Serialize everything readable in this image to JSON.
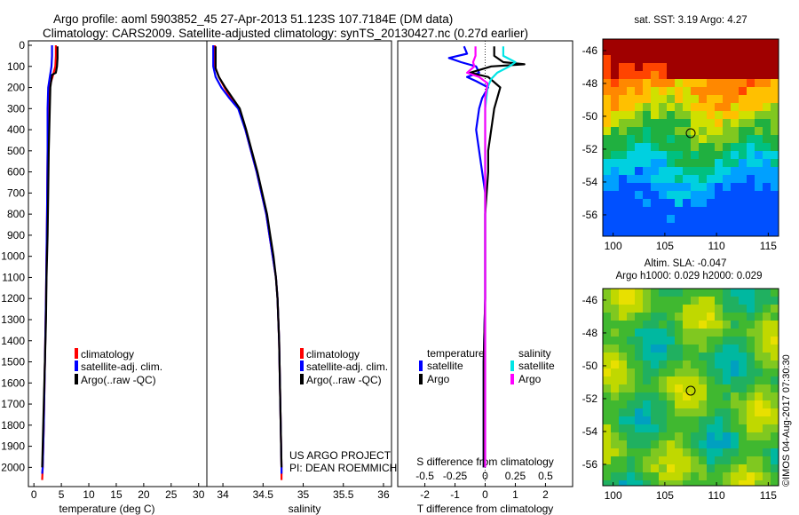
{
  "header": {
    "line1": "Argo profile: aoml 5903852_45 27-Apr-2013 51.123S 107.7184E (DM data)",
    "line2": "Climatology: CARS2009. Satellite-adjusted climatology: synTS_20130427.nc (0.27d earlier)"
  },
  "colors": {
    "climatology": "#ff0000",
    "satellite": "#0000ff",
    "argo": "#000000",
    "sal_satellite": "#00e5e5",
    "sal_argo": "#ff00ff"
  },
  "depth_axis": {
    "ticks": [
      0,
      100,
      200,
      300,
      400,
      500,
      600,
      700,
      800,
      900,
      1000,
      1100,
      1200,
      1300,
      1400,
      1500,
      1600,
      1700,
      1800,
      1900,
      2000
    ]
  },
  "legend": {
    "climatology": "climatology",
    "satellite_adj": "satellite-adj. clim.",
    "argo": "Argo(..raw -QC)"
  },
  "panel4": {
    "temp_header": "temperature",
    "sal_header": "salinity",
    "satellite": "satellite",
    "argo": "Argo"
  },
  "credit": {
    "line1": "US ARGO PROJECT",
    "line2": "PI: DEAN ROEMMICH"
  },
  "maps": {
    "sst_title": "sat. SST: 3.19 Argo: 4.27",
    "sla_title1": "Altim. SLA: -0.047",
    "sla_title2": "Argo h1000: 0.029 h2000: 0.029",
    "lat_ticks": [
      "-46",
      "-48",
      "-50",
      "-52",
      "-54",
      "-56"
    ],
    "lon_ticks": [
      "100",
      "105",
      "110",
      "115"
    ],
    "watermark": "©IMOS 04-Aug-2017 07:30:30"
  },
  "chart_data": [
    {
      "type": "line",
      "title": "",
      "xlabel": "temperature (deg C)",
      "ylabel": "",
      "xlim": [
        -1,
        31.5
      ],
      "ylim": [
        2070,
        0
      ],
      "xticks": [
        0,
        5,
        10,
        15,
        20,
        25,
        30
      ],
      "series": [
        {
          "name": "climatology",
          "color": "#ff0000",
          "points": [
            [
              4.0,
              0
            ],
            [
              4.0,
              50
            ],
            [
              3.9,
              100
            ],
            [
              3.4,
              150
            ],
            [
              2.8,
              200
            ],
            [
              2.6,
              300
            ],
            [
              2.5,
              500
            ],
            [
              2.4,
              800
            ],
            [
              2.3,
              1000
            ],
            [
              2.2,
              1200
            ],
            [
              2.0,
              1500
            ],
            [
              1.8,
              1800
            ],
            [
              1.6,
              2000
            ],
            [
              1.5,
              2060
            ]
          ]
        },
        {
          "name": "satellite-adj. clim.",
          "color": "#0000ff",
          "points": [
            [
              3.3,
              0
            ],
            [
              3.3,
              50
            ],
            [
              3.2,
              100
            ],
            [
              2.9,
              150
            ],
            [
              2.6,
              200
            ],
            [
              2.5,
              300
            ],
            [
              2.5,
              500
            ],
            [
              2.4,
              800
            ],
            [
              2.3,
              1000
            ],
            [
              2.2,
              1200
            ],
            [
              2.0,
              1500
            ],
            [
              1.8,
              1800
            ],
            [
              1.6,
              2000
            ],
            [
              1.5,
              2030
            ]
          ]
        },
        {
          "name": "Argo(..raw -QC)",
          "color": "#000000",
          "points": [
            [
              4.3,
              5
            ],
            [
              4.3,
              60
            ],
            [
              4.2,
              100
            ],
            [
              4.0,
              130
            ],
            [
              3.3,
              140
            ],
            [
              3.0,
              200
            ],
            [
              2.9,
              300
            ],
            [
              2.8,
              400
            ],
            [
              2.7,
              500
            ],
            [
              2.6,
              700
            ],
            [
              2.5,
              900
            ],
            [
              2.3,
              1100
            ],
            [
              2.2,
              1300
            ],
            [
              2.0,
              1500
            ],
            [
              1.8,
              1700
            ],
            [
              1.6,
              1900
            ],
            [
              1.5,
              2000
            ]
          ]
        }
      ]
    },
    {
      "type": "line",
      "title": "",
      "xlabel": "salinity",
      "ylabel": "",
      "xlim": [
        33.8,
        36.1
      ],
      "ylim": [
        2070,
        0
      ],
      "xticks": [
        34,
        34.5,
        35,
        35.5,
        36
      ],
      "xtick_labels": [
        "34",
        "34.5",
        "35",
        "35.5",
        "36"
      ],
      "series": [
        {
          "name": "climatology",
          "color": "#ff0000",
          "points": [
            [
              33.9,
              0
            ],
            [
              33.9,
              100
            ],
            [
              33.95,
              150
            ],
            [
              34.02,
              200
            ],
            [
              34.1,
              250
            ],
            [
              34.2,
              300
            ],
            [
              34.28,
              400
            ],
            [
              34.35,
              500
            ],
            [
              34.42,
              600
            ],
            [
              34.48,
              700
            ],
            [
              34.54,
              800
            ],
            [
              34.58,
              900
            ],
            [
              34.62,
              1000
            ],
            [
              34.66,
              1100
            ],
            [
              34.68,
              1200
            ],
            [
              34.7,
              1400
            ],
            [
              34.71,
              1600
            ],
            [
              34.72,
              1800
            ],
            [
              34.73,
              2000
            ],
            [
              34.73,
              2060
            ]
          ]
        },
        {
          "name": "satellite-adj. clim.",
          "color": "#0000ff",
          "points": [
            [
              33.88,
              0
            ],
            [
              33.88,
              100
            ],
            [
              33.91,
              150
            ],
            [
              33.98,
              200
            ],
            [
              34.08,
              250
            ],
            [
              34.19,
              300
            ],
            [
              34.28,
              400
            ],
            [
              34.35,
              500
            ],
            [
              34.42,
              600
            ],
            [
              34.48,
              700
            ],
            [
              34.54,
              800
            ],
            [
              34.58,
              900
            ],
            [
              34.62,
              1000
            ],
            [
              34.66,
              1100
            ],
            [
              34.68,
              1200
            ],
            [
              34.7,
              1400
            ],
            [
              34.71,
              1600
            ],
            [
              34.72,
              1800
            ],
            [
              34.73,
              2000
            ],
            [
              34.73,
              2030
            ]
          ]
        },
        {
          "name": "Argo(..raw -QC)",
          "color": "#000000",
          "points": [
            [
              33.91,
              5
            ],
            [
              33.91,
              110
            ],
            [
              33.95,
              150
            ],
            [
              34.03,
              200
            ],
            [
              34.12,
              250
            ],
            [
              34.21,
              300
            ],
            [
              34.29,
              400
            ],
            [
              34.36,
              500
            ],
            [
              34.43,
              600
            ],
            [
              34.49,
              700
            ],
            [
              34.55,
              800
            ],
            [
              34.59,
              900
            ],
            [
              34.63,
              1000
            ],
            [
              34.66,
              1100
            ],
            [
              34.68,
              1200
            ],
            [
              34.7,
              1400
            ],
            [
              34.71,
              1600
            ],
            [
              34.72,
              1800
            ],
            [
              34.73,
              2000
            ]
          ]
        }
      ]
    },
    {
      "type": "line",
      "title": "",
      "xlabel": "T difference from climatology",
      "secondary_xlabel": "S difference from climatology",
      "ylabel": "",
      "xlim": [
        -2.9,
        2.9
      ],
      "ylim": [
        2070,
        0
      ],
      "xticks": [
        -2,
        -1,
        0,
        1,
        2
      ],
      "xtick_labels": [
        "-2",
        "-1",
        "0",
        "1",
        "2"
      ],
      "secondary_xticks": [
        -0.5,
        -0.25,
        0,
        0.25,
        0.5
      ],
      "secondary_xtick_labels": [
        "-0.5",
        "-0.25",
        "0",
        "0.25",
        "0.5"
      ],
      "series": [
        {
          "name": "temperature satellite",
          "color": "#0000ff",
          "points": [
            [
              -0.7,
              5
            ],
            [
              -0.6,
              40
            ],
            [
              -1.2,
              60
            ],
            [
              -0.8,
              80
            ],
            [
              -0.3,
              100
            ],
            [
              -0.2,
              130
            ],
            [
              -0.6,
              150
            ],
            [
              -0.3,
              170
            ],
            [
              0.1,
              200
            ],
            [
              -0.1,
              250
            ],
            [
              -0.2,
              300
            ],
            [
              -0.3,
              400
            ],
            [
              -0.2,
              500
            ],
            [
              -0.1,
              600
            ],
            [
              0.0,
              700
            ],
            [
              0.0,
              800
            ],
            [
              0.0,
              1000
            ],
            [
              0.0,
              1200
            ],
            [
              -0.05,
              1500
            ],
            [
              -0.05,
              1800
            ],
            [
              -0.05,
              2000
            ]
          ]
        },
        {
          "name": "temperature Argo",
          "color": "#000000",
          "points": [
            [
              0.3,
              5
            ],
            [
              0.3,
              50
            ],
            [
              0.6,
              80
            ],
            [
              1.3,
              90
            ],
            [
              0.2,
              100
            ],
            [
              -0.5,
              130
            ],
            [
              0.1,
              150
            ],
            [
              0.5,
              200
            ],
            [
              0.4,
              250
            ],
            [
              0.3,
              300
            ],
            [
              0.2,
              400
            ],
            [
              0.1,
              500
            ],
            [
              0.1,
              600
            ],
            [
              0.0,
              800
            ],
            [
              0.0,
              1000
            ],
            [
              0.0,
              1200
            ],
            [
              -0.05,
              1500
            ],
            [
              -0.05,
              1800
            ],
            [
              -0.05,
              2000
            ]
          ]
        },
        {
          "name": "salinity satellite",
          "color": "#00e5e5",
          "points": [
            [
              0.15,
              5
            ],
            [
              0.15,
              50
            ],
            [
              0.25,
              80
            ],
            [
              0.2,
              100
            ],
            [
              0.1,
              130
            ],
            [
              0.05,
              160
            ],
            [
              0.02,
              200
            ],
            [
              0.0,
              300
            ],
            [
              0.0,
              600
            ],
            [
              0.0,
              1000
            ],
            [
              0.0,
              1500
            ],
            [
              0.0,
              2000
            ]
          ]
        },
        {
          "name": "salinity Argo",
          "color": "#ff00ff",
          "points": [
            [
              -0.08,
              5
            ],
            [
              -0.08,
              50
            ],
            [
              -0.1,
              80
            ],
            [
              -0.09,
              100
            ],
            [
              -0.15,
              130
            ],
            [
              -0.05,
              150
            ],
            [
              0.02,
              180
            ],
            [
              0.0,
              250
            ],
            [
              0.0,
              600
            ],
            [
              0.0,
              1000
            ],
            [
              0.0,
              1500
            ],
            [
              0.0,
              2000
            ]
          ]
        }
      ]
    },
    {
      "type": "heatmap",
      "title": "sat. SST: 3.19 Argo: 4.27",
      "xlim": [
        99,
        116
      ],
      "ylim": [
        -57.3,
        -45.3
      ],
      "xticks": [
        100,
        105,
        110,
        115
      ],
      "yticks": [
        -46,
        -48,
        -50,
        -52,
        -54,
        -56
      ],
      "marker": [
        107.7184,
        -51.123
      ]
    },
    {
      "type": "heatmap",
      "title": "Altim. SLA: -0.047 / Argo h1000: 0.029 h2000: 0.029",
      "xlim": [
        99,
        116
      ],
      "ylim": [
        -57.3,
        -45.3
      ],
      "xticks": [
        100,
        105,
        110,
        115
      ],
      "yticks": [
        -46,
        -48,
        -50,
        -52,
        -54,
        -56
      ],
      "marker": [
        107.7184,
        -51.123
      ]
    }
  ]
}
